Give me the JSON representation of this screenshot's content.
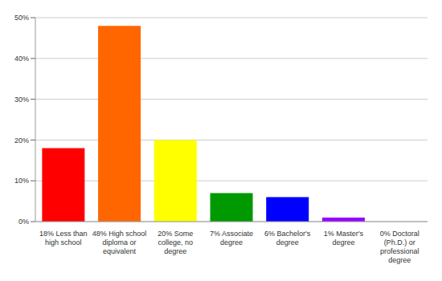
{
  "chart_data": {
    "type": "bar",
    "categories": [
      "18% Less than high school",
      "48% High school diploma or equivalent",
      "20% Some college, no degree",
      "7% Associate degree",
      "6% Bachelor's degree",
      "1% Master's degree",
      "0% Doctoral (Ph.D.) or professional degree"
    ],
    "values": [
      18,
      48,
      20,
      7,
      6,
      1,
      0
    ],
    "colors": [
      "#ff0000",
      "#ff6600",
      "#ffff00",
      "#009900",
      "#0000ff",
      "#9900ff",
      "#ff00ff"
    ],
    "ylim": [
      0,
      50
    ],
    "yticks": [
      {
        "value": 0,
        "label": "0%"
      },
      {
        "value": 10,
        "label": "10%"
      },
      {
        "value": 20,
        "label": "20%"
      },
      {
        "value": 30,
        "label": "30%"
      },
      {
        "value": 40,
        "label": "40%"
      },
      {
        "value": 50,
        "label": "50%"
      }
    ],
    "grid": true
  }
}
